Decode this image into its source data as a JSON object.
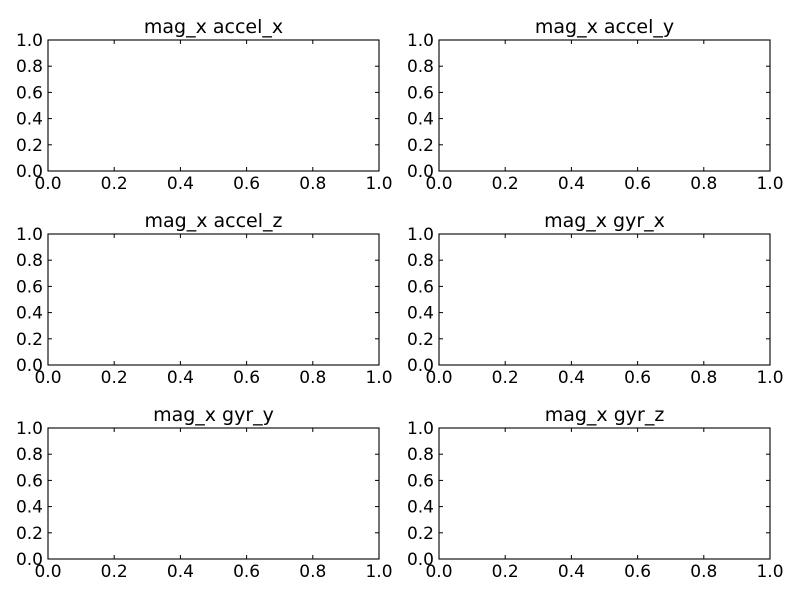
{
  "chart_data": [
    {
      "type": "line",
      "title": "mag_x accel_x",
      "xlim": [
        0,
        1
      ],
      "ylim": [
        0,
        1
      ],
      "xticks": [
        "0.0",
        "0.2",
        "0.4",
        "0.6",
        "0.8",
        "1.0"
      ],
      "yticks": [
        "0.0",
        "0.2",
        "0.4",
        "0.6",
        "0.8",
        "1.0"
      ],
      "series": [],
      "grid": false
    },
    {
      "type": "line",
      "title": "mag_x accel_y",
      "xlim": [
        0,
        1
      ],
      "ylim": [
        0,
        1
      ],
      "xticks": [
        "0.0",
        "0.2",
        "0.4",
        "0.6",
        "0.8",
        "1.0"
      ],
      "yticks": [
        "0.0",
        "0.2",
        "0.4",
        "0.6",
        "0.8",
        "1.0"
      ],
      "series": [],
      "grid": false
    },
    {
      "type": "line",
      "title": "mag_x accel_z",
      "xlim": [
        0,
        1
      ],
      "ylim": [
        0,
        1
      ],
      "xticks": [
        "0.0",
        "0.2",
        "0.4",
        "0.6",
        "0.8",
        "1.0"
      ],
      "yticks": [
        "0.0",
        "0.2",
        "0.4",
        "0.6",
        "0.8",
        "1.0"
      ],
      "series": [],
      "grid": false
    },
    {
      "type": "line",
      "title": "mag_x gyr_x",
      "xlim": [
        0,
        1
      ],
      "ylim": [
        0,
        1
      ],
      "xticks": [
        "0.0",
        "0.2",
        "0.4",
        "0.6",
        "0.8",
        "1.0"
      ],
      "yticks": [
        "0.0",
        "0.2",
        "0.4",
        "0.6",
        "0.8",
        "1.0"
      ],
      "series": [],
      "grid": false
    },
    {
      "type": "line",
      "title": "mag_x gyr_y",
      "xlim": [
        0,
        1
      ],
      "ylim": [
        0,
        1
      ],
      "xticks": [
        "0.0",
        "0.2",
        "0.4",
        "0.6",
        "0.8",
        "1.0"
      ],
      "yticks": [
        "0.0",
        "0.2",
        "0.4",
        "0.6",
        "0.8",
        "1.0"
      ],
      "series": [],
      "grid": false
    },
    {
      "type": "line",
      "title": "mag_x gyr_z",
      "xlim": [
        0,
        1
      ],
      "ylim": [
        0,
        1
      ],
      "xticks": [
        "0.0",
        "0.2",
        "0.4",
        "0.6",
        "0.8",
        "1.0"
      ],
      "yticks": [
        "0.0",
        "0.2",
        "0.4",
        "0.6",
        "0.8",
        "1.0"
      ],
      "series": [],
      "grid": false
    }
  ]
}
